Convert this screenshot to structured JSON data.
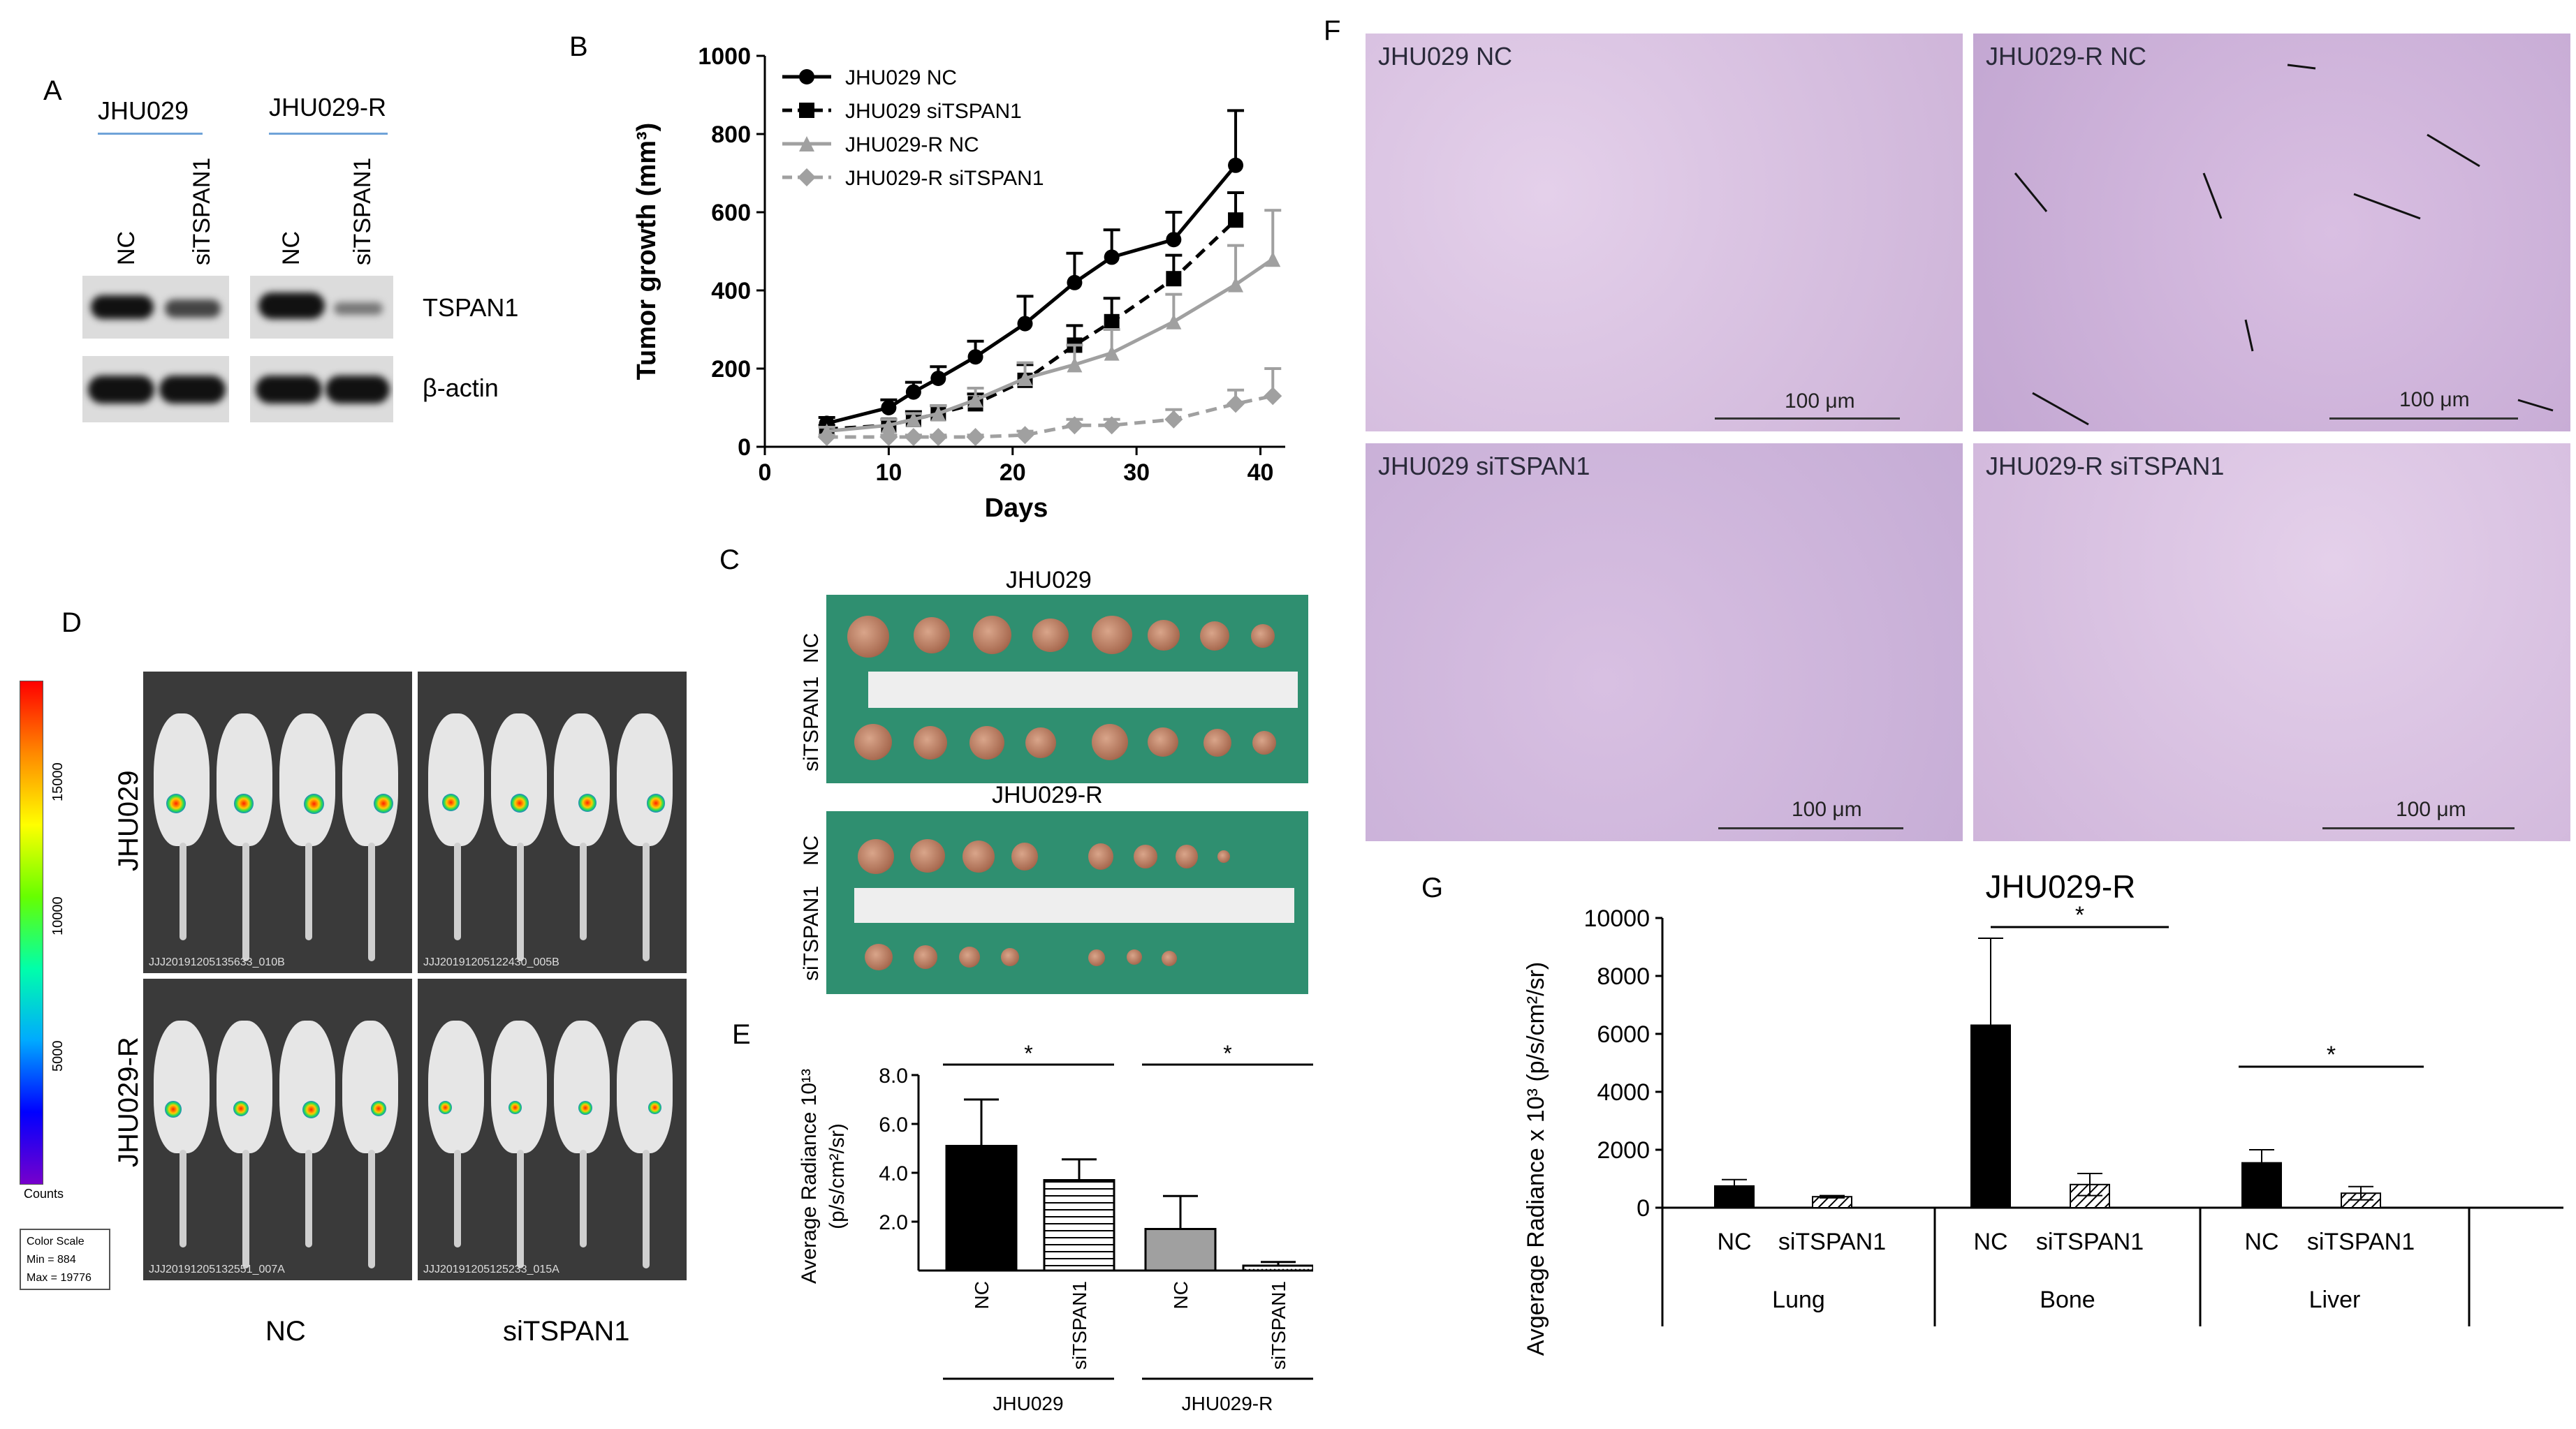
{
  "panel_letters": [
    "A",
    "B",
    "C",
    "D",
    "E",
    "F",
    "G"
  ],
  "panelA": {
    "groups": [
      "JHU029",
      "JHU029-R"
    ],
    "lanes": [
      "NC",
      "siTSPAN1",
      "NC",
      "siTSPAN1"
    ],
    "bands": [
      "TSPAN1",
      "β-actin"
    ]
  },
  "panelC": {
    "groups": [
      "JHU029",
      "JHU029-R"
    ],
    "rows": [
      "NC",
      "siTSPAN1"
    ]
  },
  "panelD": {
    "rows": [
      "JHU029",
      "JHU029-R"
    ],
    "cols": [
      "NC",
      "siTSPAN1"
    ],
    "scale_ticks": [
      "15000",
      "10000",
      "5000"
    ],
    "scale_unit": "Counts",
    "color_scale": [
      "Color Scale",
      "Min = 884",
      "Max = 19776"
    ],
    "image_ids": [
      "JJJ20191205135633_010B",
      "JJJ20191205122430_005B",
      "JJJ20191205132551_007A",
      "JJJ20191205125233_015A"
    ]
  },
  "panelF": {
    "titles": [
      "JHU029 NC",
      "JHU029-R NC",
      "JHU029 siTSPAN1",
      "JHU029-R siTSPAN1"
    ],
    "scale": "100 μm"
  },
  "chart_data": [
    {
      "id": "B",
      "type": "line",
      "xlabel": "Days",
      "ylabel": "Tumor growth (mm³)",
      "xlim": [
        0,
        42
      ],
      "ylim": [
        0,
        1000
      ],
      "xticks": [
        0,
        10,
        20,
        30,
        40
      ],
      "yticks": [
        0,
        200,
        400,
        600,
        800,
        1000
      ],
      "legend_position": "top-left",
      "series": [
        {
          "name": "JHU029 NC",
          "color": "#000000",
          "dash": "solid",
          "marker": "circle",
          "x": [
            5,
            10,
            12,
            14,
            17,
            21,
            25,
            28,
            33,
            38
          ],
          "y": [
            60,
            100,
            140,
            175,
            230,
            315,
            420,
            485,
            530,
            720
          ],
          "err": [
            15,
            20,
            25,
            30,
            40,
            70,
            75,
            70,
            70,
            140
          ]
        },
        {
          "name": "JHU029 siTSPAN1",
          "color": "#000000",
          "dash": "dashed",
          "marker": "square",
          "x": [
            5,
            10,
            12,
            14,
            17,
            21,
            25,
            28,
            33,
            38
          ],
          "y": [
            45,
            55,
            70,
            85,
            110,
            170,
            260,
            320,
            430,
            580
          ],
          "err": [
            10,
            15,
            20,
            20,
            25,
            40,
            50,
            60,
            60,
            70
          ]
        },
        {
          "name": "JHU029-R NC",
          "color": "#a0a0a0",
          "dash": "solid",
          "marker": "triangle",
          "x": [
            5,
            10,
            12,
            14,
            17,
            21,
            25,
            28,
            33,
            38,
            41
          ],
          "y": [
            40,
            55,
            70,
            85,
            120,
            175,
            210,
            240,
            320,
            415,
            480
          ],
          "err": [
            10,
            15,
            15,
            20,
            30,
            40,
            50,
            60,
            70,
            100,
            125
          ]
        },
        {
          "name": "JHU029-R siTSPAN1",
          "color": "#a0a0a0",
          "dash": "dashed",
          "marker": "diamond",
          "x": [
            5,
            10,
            12,
            14,
            17,
            21,
            25,
            28,
            33,
            38,
            41
          ],
          "y": [
            25,
            25,
            25,
            25,
            25,
            30,
            55,
            55,
            70,
            110,
            130
          ],
          "err": [
            5,
            5,
            5,
            5,
            5,
            10,
            15,
            15,
            25,
            35,
            70
          ]
        }
      ]
    },
    {
      "id": "E",
      "type": "bar",
      "ylabel_top": "Average Radiance 10¹³",
      "ylabel_bottom": "(p/s/cm²/sr)",
      "ylim": [
        0,
        8
      ],
      "yticks": [
        "2.0",
        "4.0",
        "6.0",
        "8.0"
      ],
      "categories": [
        "NC",
        "siTSPAN1",
        "NC",
        "siTSPAN1"
      ],
      "groups": [
        "JHU029",
        "JHU029-R"
      ],
      "values": [
        5.1,
        3.7,
        1.7,
        0.2
      ],
      "errors": [
        1.9,
        0.85,
        1.35,
        0.15
      ],
      "fills": [
        "#000000",
        "hlines",
        "#a0a0a0",
        "dots"
      ],
      "significance": [
        "*",
        "*"
      ]
    },
    {
      "id": "G",
      "type": "bar",
      "title": "JHU029-R",
      "ylabel": "Avgerage Radiance x 10³ (p/s/cm²/sr)",
      "ylim": [
        0,
        10000
      ],
      "yticks": [
        0,
        2000,
        4000,
        6000,
        8000,
        10000
      ],
      "groups": [
        "Lung",
        "Bone",
        "Liver"
      ],
      "categories": [
        "NC",
        "siTSPAN1",
        "NC",
        "siTSPAN1",
        "NC",
        "siTSPAN1"
      ],
      "values": [
        750,
        380,
        6300,
        800,
        1550,
        500
      ],
      "errors": [
        220,
        40,
        3000,
        380,
        450,
        230
      ],
      "fills": [
        "#000000",
        "hatch",
        "#000000",
        "hatch",
        "#000000",
        "hatch"
      ],
      "significance": [
        "*",
        "*"
      ]
    }
  ]
}
